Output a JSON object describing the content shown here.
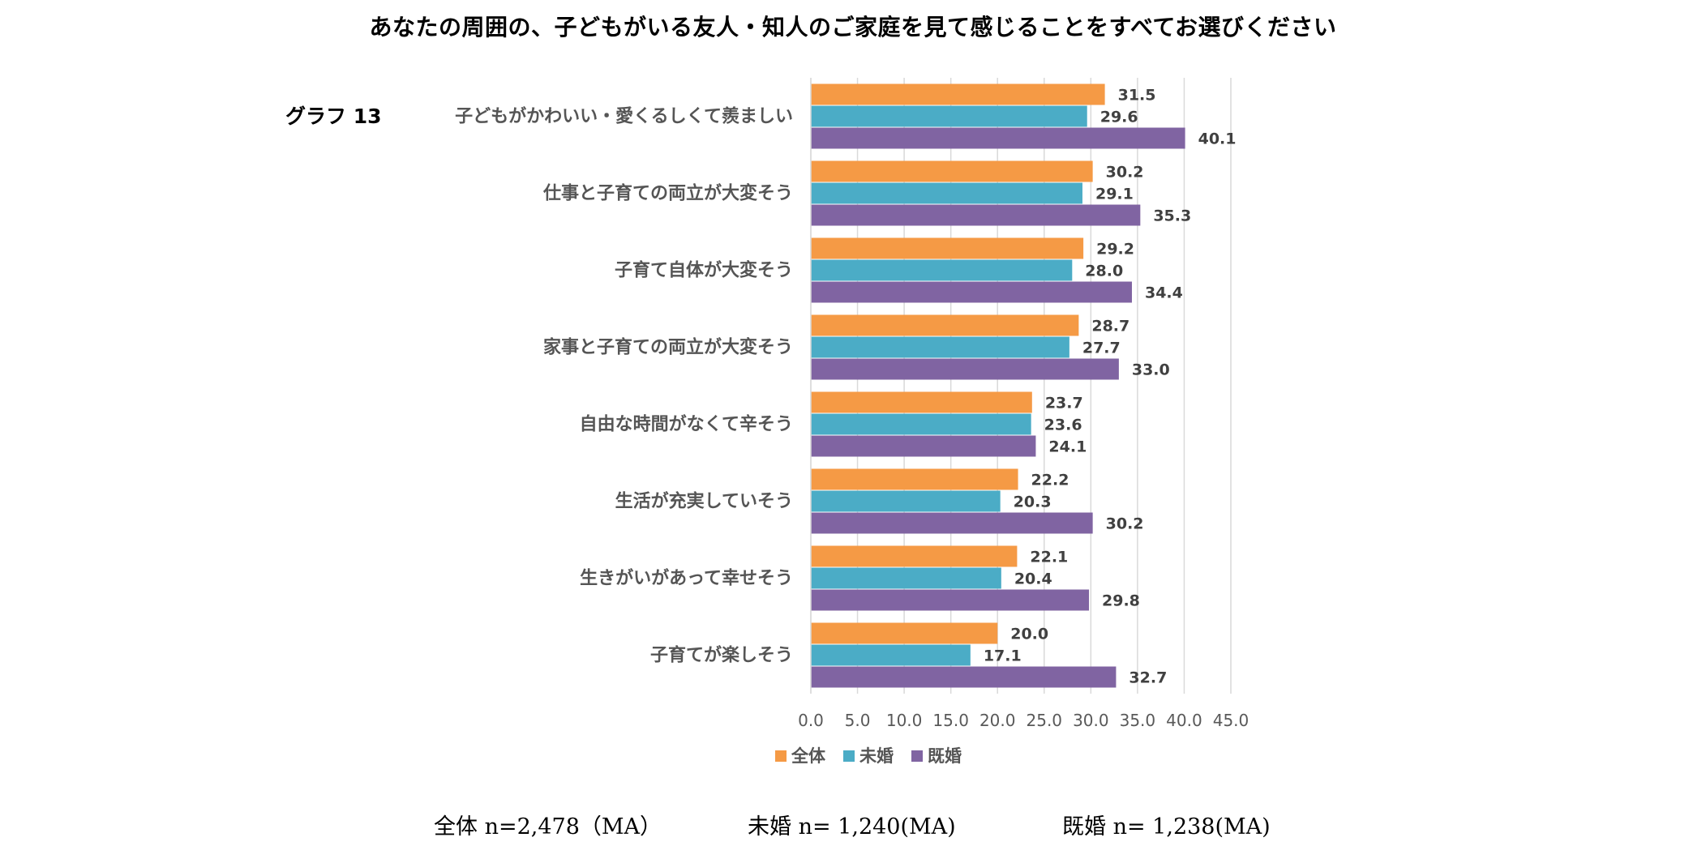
{
  "title": "あなたの周囲の、子どもがいる友人・知人のご家庭を見て感じることをすべてお選びください",
  "graph_label": "グラフ 13",
  "colors": {
    "zentai": "#F59A45",
    "mikon": "#4BACC6",
    "kikon": "#8064A2",
    "grid": "#D9D9D9"
  },
  "chart_data": {
    "type": "bar",
    "orientation": "horizontal",
    "categories": [
      "子どもがかわいい・愛くるしくて羨ましい",
      "仕事と子育ての両立が大変そう",
      "子育て自体が大変そう",
      "家事と子育ての両立が大変そう",
      "自由な時間がなくて辛そう",
      "生活が充実していそう",
      "生きがいがあって幸せそう",
      "子育てが楽しそう"
    ],
    "series": [
      {
        "name": "全体",
        "values": [
          "31.5",
          "30.2",
          "29.2",
          "28.7",
          "23.7",
          "22.2",
          "22.1",
          "20.0"
        ]
      },
      {
        "name": "未婚",
        "values": [
          "29.6",
          "29.1",
          "28.0",
          "27.7",
          "23.6",
          "20.3",
          "20.4",
          "17.1"
        ]
      },
      {
        "name": "既婚",
        "values": [
          "40.1",
          "35.3",
          "34.4",
          "33.0",
          "24.1",
          "30.2",
          "29.8",
          "32.7"
        ]
      }
    ],
    "xticks": [
      "0.0",
      "5.0",
      "10.0",
      "15.0",
      "20.0",
      "25.0",
      "30.0",
      "35.0",
      "40.0",
      "45.0"
    ],
    "xlim": [
      0,
      45
    ],
    "grid": true,
    "legend_position": "bottom"
  },
  "footer": {
    "zentai": "全体 n=2,478（MA）",
    "mikon": "未婚 n= 1,240(MA)",
    "kikon": "既婚 n= 1,238(MA)"
  }
}
